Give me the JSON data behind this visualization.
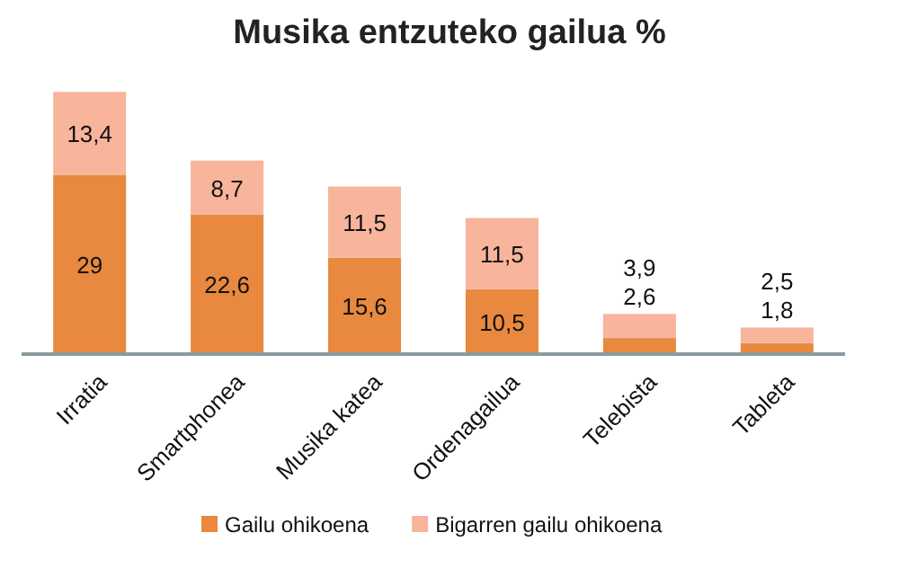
{
  "chart_data": {
    "type": "bar",
    "title": "Musika entzuteko gailua %",
    "stacked": true,
    "legend": "bottom",
    "categories": [
      "Irratia",
      "Smartphonea",
      "Musika katea",
      "Ordenagailua",
      "Telebista",
      "Tableta"
    ],
    "series": [
      {
        "name": "Gailu ohikoena",
        "color": "#e8893f",
        "values": [
          29,
          22.6,
          15.6,
          10.5,
          2.6,
          1.8
        ],
        "value_labels": [
          "29",
          "22,6",
          "15,6",
          "10,5",
          "2,6",
          "1,8"
        ]
      },
      {
        "name": "Bigarren gailu ohikoena",
        "color": "#f9b49c",
        "values": [
          13.4,
          8.7,
          11.5,
          11.5,
          3.9,
          2.5
        ],
        "value_labels": [
          "13,4",
          "8,7",
          "11,5",
          "11,5",
          "3,9",
          "2,5"
        ]
      }
    ]
  }
}
